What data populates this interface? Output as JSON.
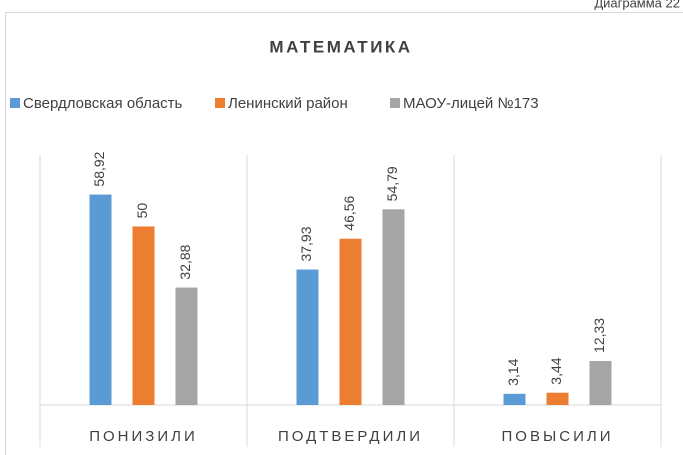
{
  "caption": "Диаграмма 22",
  "chart_data": {
    "type": "bar",
    "title": "МАТЕМАТИКА",
    "categories": [
      "ПОНИЗИЛИ",
      "ПОДТВЕРДИЛИ",
      "ПОВЫСИЛИ"
    ],
    "series": [
      {
        "name": "Свердловская область",
        "color": "#5b9bd5",
        "values": [
          58.92,
          37.93,
          3.14
        ],
        "value_labels": [
          "58,92",
          "37,93",
          "3,14"
        ]
      },
      {
        "name": "Ленинский район",
        "color": "#ed7d31",
        "values": [
          50,
          46.56,
          3.44
        ],
        "value_labels": [
          "50",
          "46,56",
          "3,44"
        ]
      },
      {
        "name": "МАОУ-лицей №173",
        "color": "#a5a5a5",
        "values": [
          32.88,
          54.79,
          12.33
        ],
        "value_labels": [
          "32,88",
          "54,79",
          "12,33"
        ]
      }
    ],
    "ylim": [
      0,
      70
    ]
  }
}
